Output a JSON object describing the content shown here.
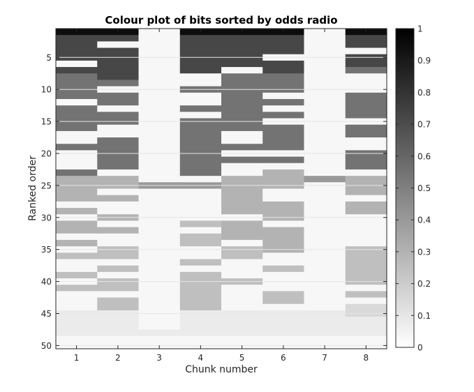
{
  "chart_data": {
    "type": "heatmap",
    "title": "Colour plot of bits sorted by odds radio",
    "xlabel": "Chunk number",
    "ylabel": "Ranked order",
    "x_ticks": [
      "1",
      "2",
      "3",
      "4",
      "5",
      "6",
      "7",
      "8"
    ],
    "y_ticks": [
      "5",
      "10",
      "15",
      "20",
      "25",
      "30",
      "35",
      "40",
      "45",
      "50"
    ],
    "xlim": [
      0.5,
      8.5
    ],
    "ylim": [
      0.5,
      50.5
    ],
    "y_reversed": true,
    "grid": "horizontal",
    "colormap": "gray_reversed",
    "colorbar": {
      "range": [
        0,
        1
      ],
      "ticks": [
        "0",
        "0.1",
        "0.2",
        "0.3",
        "0.4",
        "0.5",
        "0.6",
        "0.7",
        "0.8",
        "0.9",
        "1"
      ],
      "placement": "right"
    },
    "columns": [
      {
        "name": "1",
        "values": [
          0.95,
          0.72,
          0.72,
          0.72,
          0.72,
          0.03,
          0.72,
          0.55,
          0.55,
          0.55,
          0.55,
          0.03,
          0.55,
          0.55,
          0.55,
          0.55,
          0.03,
          0.03,
          0.55,
          0.03,
          0.03,
          0.03,
          0.55,
          0.3,
          0.3,
          0.3,
          0.3,
          0.03,
          0.3,
          0.03,
          0.3,
          0.3,
          0.03,
          0.3,
          0.03,
          0.25,
          0.03,
          0.03,
          0.25,
          0.03,
          0.25,
          0.03,
          0.03,
          0.03,
          0.08,
          0.08,
          0.08,
          0.08,
          0.03,
          0.03
        ]
      },
      {
        "name": "2",
        "values": [
          0.95,
          0.72,
          0.03,
          0.72,
          0.72,
          0.72,
          0.72,
          0.72,
          0.55,
          0.03,
          0.55,
          0.55,
          0.03,
          0.55,
          0.55,
          0.03,
          0.03,
          0.55,
          0.55,
          0.55,
          0.55,
          0.55,
          0.03,
          0.3,
          0.3,
          0.03,
          0.3,
          0.03,
          0.03,
          0.3,
          0.03,
          0.3,
          0.03,
          0.03,
          0.25,
          0.25,
          0.03,
          0.25,
          0.03,
          0.25,
          0.25,
          0.03,
          0.25,
          0.25,
          0.08,
          0.08,
          0.08,
          0.08,
          0.03,
          0.03
        ]
      },
      {
        "name": "3",
        "values": [
          0.03,
          0.03,
          0.03,
          0.03,
          0.03,
          0.03,
          0.03,
          0.03,
          0.03,
          0.03,
          0.03,
          0.03,
          0.03,
          0.03,
          0.03,
          0.03,
          0.03,
          0.03,
          0.03,
          0.03,
          0.03,
          0.03,
          0.03,
          0.03,
          0.4,
          0.03,
          0.03,
          0.03,
          0.03,
          0.03,
          0.03,
          0.03,
          0.03,
          0.03,
          0.03,
          0.03,
          0.03,
          0.03,
          0.03,
          0.03,
          0.03,
          0.03,
          0.03,
          0.03,
          0.03,
          0.03,
          0.03,
          0.08,
          0.03,
          0.03
        ]
      },
      {
        "name": "4",
        "values": [
          0.95,
          0.72,
          0.72,
          0.72,
          0.72,
          0.72,
          0.72,
          0.03,
          0.03,
          0.55,
          0.03,
          0.03,
          0.55,
          0.03,
          0.55,
          0.55,
          0.55,
          0.55,
          0.55,
          0.55,
          0.55,
          0.55,
          0.55,
          0.03,
          0.4,
          0.03,
          0.03,
          0.03,
          0.03,
          0.03,
          0.25,
          0.03,
          0.25,
          0.25,
          0.03,
          0.03,
          0.25,
          0.03,
          0.25,
          0.25,
          0.25,
          0.25,
          0.25,
          0.25,
          0.08,
          0.08,
          0.08,
          0.08,
          0.03,
          0.03
        ]
      },
      {
        "name": "5",
        "values": [
          0.95,
          0.72,
          0.72,
          0.72,
          0.72,
          0.72,
          0.03,
          0.55,
          0.55,
          0.55,
          0.55,
          0.55,
          0.55,
          0.55,
          0.55,
          0.55,
          0.03,
          0.03,
          0.55,
          0.03,
          0.55,
          0.03,
          0.03,
          0.3,
          0.3,
          0.3,
          0.3,
          0.3,
          0.3,
          0.03,
          0.3,
          0.3,
          0.3,
          0.03,
          0.25,
          0.25,
          0.03,
          0.03,
          0.03,
          0.25,
          0.03,
          0.03,
          0.03,
          0.03,
          0.08,
          0.08,
          0.08,
          0.08,
          0.03,
          0.03
        ]
      },
      {
        "name": "6",
        "values": [
          0.95,
          0.72,
          0.72,
          0.72,
          0.03,
          0.72,
          0.72,
          0.55,
          0.55,
          0.55,
          0.03,
          0.55,
          0.03,
          0.55,
          0.03,
          0.55,
          0.55,
          0.55,
          0.55,
          0.03,
          0.55,
          0.03,
          0.3,
          0.3,
          0.3,
          0.03,
          0.03,
          0.3,
          0.3,
          0.3,
          0.03,
          0.3,
          0.3,
          0.3,
          0.3,
          0.03,
          0.03,
          0.25,
          0.03,
          0.03,
          0.03,
          0.25,
          0.25,
          0.03,
          0.08,
          0.08,
          0.08,
          0.08,
          0.03,
          0.03
        ]
      },
      {
        "name": "7",
        "values": [
          0.03,
          0.03,
          0.03,
          0.03,
          0.03,
          0.03,
          0.03,
          0.03,
          0.03,
          0.03,
          0.03,
          0.03,
          0.03,
          0.03,
          0.03,
          0.03,
          0.03,
          0.03,
          0.03,
          0.03,
          0.03,
          0.03,
          0.03,
          0.4,
          0.03,
          0.03,
          0.03,
          0.03,
          0.03,
          0.03,
          0.03,
          0.03,
          0.03,
          0.03,
          0.03,
          0.03,
          0.03,
          0.03,
          0.03,
          0.03,
          0.03,
          0.03,
          0.03,
          0.03,
          0.08,
          0.08,
          0.08,
          0.08,
          0.03,
          0.03
        ]
      },
      {
        "name": "8",
        "values": [
          0.95,
          0.72,
          0.72,
          0.03,
          0.72,
          0.72,
          0.55,
          0.03,
          0.03,
          0.03,
          0.55,
          0.55,
          0.55,
          0.55,
          0.03,
          0.55,
          0.55,
          0.03,
          0.03,
          0.55,
          0.55,
          0.55,
          0.03,
          0.3,
          0.3,
          0.3,
          0.03,
          0.3,
          0.3,
          0.03,
          0.03,
          0.03,
          0.03,
          0.03,
          0.25,
          0.25,
          0.25,
          0.25,
          0.25,
          0.25,
          0.03,
          0.25,
          0.03,
          0.15,
          0.15,
          0.08,
          0.08,
          0.08,
          0.03,
          0.03
        ]
      }
    ]
  }
}
